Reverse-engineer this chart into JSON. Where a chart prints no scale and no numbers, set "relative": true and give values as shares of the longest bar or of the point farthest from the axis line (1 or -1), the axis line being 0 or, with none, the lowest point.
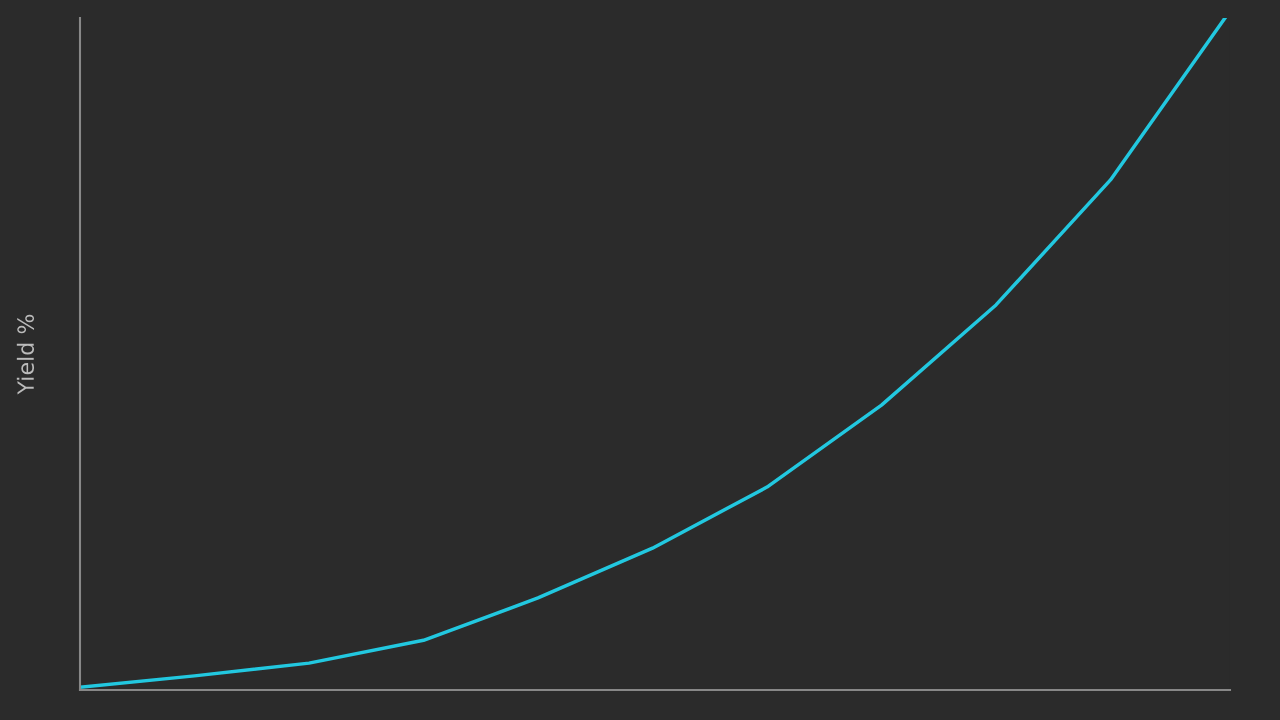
{
  "chart_data": {
    "type": "line",
    "ylabel": "Yield %",
    "relative": true,
    "categories": [
      null,
      null,
      null,
      null,
      null,
      null,
      null,
      null,
      null,
      null,
      null
    ],
    "series": [
      {
        "color": "#22c8e0",
        "values": [
          0.004,
          0.021,
          0.04,
          0.074,
          0.137,
          0.211,
          0.302,
          0.424,
          0.573,
          0.759,
          1
        ]
      }
    ],
    "marker": "none",
    "line_style": "solid",
    "grid": false,
    "legend": false
  }
}
